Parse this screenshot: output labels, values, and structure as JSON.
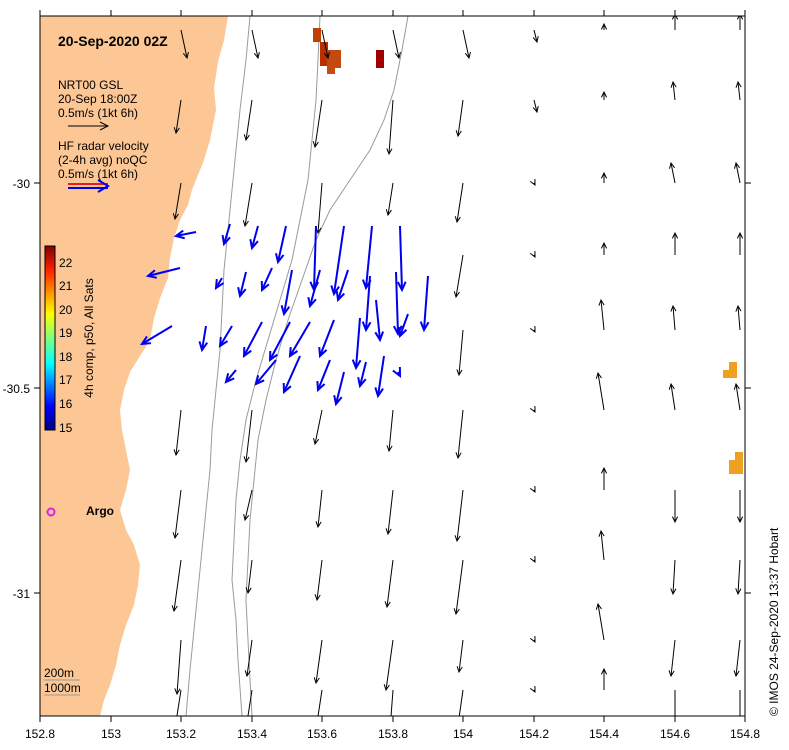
{
  "map": {
    "title": "20-Sep-2020 02Z",
    "legend": {
      "model_name": "NRT00 GSL",
      "model_time": "20-Sep 18:00Z",
      "model_scale": "0.5m/s (1kt 6h)",
      "radar_line1": "HF radar velocity",
      "radar_line2": "(2-4h avg) noQC",
      "radar_scale": "0.5m/s (1kt 6h)"
    },
    "colorbar": {
      "label": "4h comp, p50, All Sats",
      "ticks": [
        "22",
        "21",
        "20",
        "19",
        "18",
        "17",
        "16",
        "15"
      ]
    },
    "x_ticks": [
      "152.8",
      "153",
      "153.2",
      "153.4",
      "153.6",
      "153.8",
      "154",
      "154.2",
      "154.4",
      "154.6",
      "154.8"
    ],
    "y_ticks": [
      "-30",
      "-30.5",
      "-31"
    ],
    "depth_labels": [
      "200m",
      "1000m"
    ],
    "argo_label": "Argo",
    "credit": "© IMOS 24-Sep-2020 13:37 Hobart",
    "colors": {
      "land": "#fcc795",
      "radar_arrow": "#0000ee",
      "model_arrow": "#000000",
      "argo": "#e020e0",
      "isobath": "#9a9a9a"
    }
  }
}
